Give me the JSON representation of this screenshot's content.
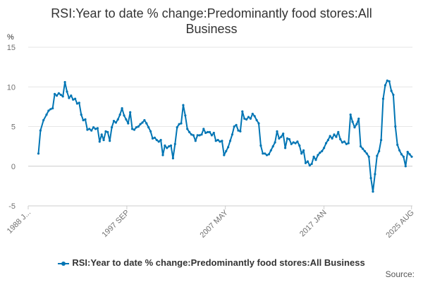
{
  "chart_data": {
    "type": "line",
    "title": "RSI:Year to date % change:Predominantly food stores:All Business",
    "ylabel": "%",
    "ylim": [
      -5,
      15
    ],
    "yticks": [
      -5,
      0,
      5,
      10,
      15
    ],
    "xlim": [
      1988.0,
      2025.67
    ],
    "xticks": [
      {
        "pos": 1988.0,
        "label": "1988 J..."
      },
      {
        "pos": 1997.67,
        "label": "1997 SEP"
      },
      {
        "pos": 2007.33,
        "label": "2007 MAY"
      },
      {
        "pos": 2017.0,
        "label": "2017 JAN"
      },
      {
        "pos": 2025.58,
        "label": "2025 AUG"
      }
    ],
    "color": "#0075b4",
    "series": [
      {
        "name": "RSI:Year to date % change:Predominantly food stores:All Business",
        "x": [
          1989.0,
          1989.2,
          1989.5,
          1989.8,
          1990.0,
          1990.2,
          1990.4,
          1990.6,
          1990.8,
          1991.0,
          1991.2,
          1991.4,
          1991.6,
          1991.8,
          1992.0,
          1992.2,
          1992.4,
          1992.6,
          1992.8,
          1993.0,
          1993.2,
          1993.4,
          1993.6,
          1993.8,
          1994.0,
          1994.2,
          1994.4,
          1994.6,
          1994.8,
          1995.0,
          1995.2,
          1995.4,
          1995.6,
          1995.8,
          1996.0,
          1996.2,
          1996.4,
          1996.6,
          1996.8,
          1997.0,
          1997.2,
          1997.4,
          1997.6,
          1997.8,
          1998.0,
          1998.2,
          1998.4,
          1998.6,
          1998.8,
          1999.0,
          1999.2,
          1999.4,
          1999.6,
          1999.8,
          2000.0,
          2000.2,
          2000.4,
          2000.6,
          2000.8,
          2001.0,
          2001.2,
          2001.4,
          2001.6,
          2001.8,
          2002.0,
          2002.2,
          2002.4,
          2002.6,
          2002.8,
          2003.0,
          2003.2,
          2003.4,
          2003.6,
          2003.8,
          2004.0,
          2004.2,
          2004.4,
          2004.6,
          2004.8,
          2005.0,
          2005.2,
          2005.4,
          2005.6,
          2005.8,
          2006.0,
          2006.2,
          2006.4,
          2006.6,
          2006.8,
          2007.0,
          2007.2,
          2007.4,
          2007.6,
          2007.8,
          2008.0,
          2008.2,
          2008.4,
          2008.6,
          2008.8,
          2009.0,
          2009.2,
          2009.4,
          2009.6,
          2009.8,
          2010.0,
          2010.2,
          2010.4,
          2010.6,
          2010.8,
          2011.0,
          2011.2,
          2011.4,
          2011.6,
          2011.8,
          2012.0,
          2012.2,
          2012.4,
          2012.6,
          2012.8,
          2013.0,
          2013.2,
          2013.4,
          2013.6,
          2013.8,
          2014.0,
          2014.2,
          2014.4,
          2014.6,
          2014.8,
          2015.0,
          2015.2,
          2015.4,
          2015.6,
          2015.8,
          2016.0,
          2016.2,
          2016.4,
          2016.6,
          2016.8,
          2017.0,
          2017.2,
          2017.4,
          2017.6,
          2017.8,
          2018.0,
          2018.2,
          2018.4,
          2018.6,
          2018.8,
          2019.0,
          2019.2,
          2019.4,
          2019.6,
          2019.8,
          2020.0,
          2020.2,
          2020.4,
          2020.6,
          2020.8,
          2021.0,
          2021.2,
          2021.4,
          2021.6,
          2021.8,
          2022.0,
          2022.2,
          2022.4,
          2022.6,
          2022.8,
          2023.0,
          2023.2,
          2023.4,
          2023.6,
          2023.8,
          2024.0,
          2024.2,
          2024.4,
          2024.6,
          2024.8,
          2025.0,
          2025.2,
          2025.4,
          2025.6
        ],
        "values": [
          1.6,
          4.5,
          5.8,
          6.5,
          7.0,
          7.2,
          7.3,
          9.1,
          8.9,
          9.2,
          9.0,
          8.8,
          10.6,
          9.4,
          8.6,
          8.9,
          8.4,
          8.5,
          7.9,
          8.0,
          6.5,
          5.8,
          5.9,
          4.6,
          4.7,
          4.5,
          4.9,
          4.7,
          4.8,
          3.1,
          4.0,
          3.3,
          4.4,
          4.3,
          3.2,
          4.9,
          5.7,
          5.5,
          5.9,
          6.5,
          7.3,
          6.4,
          5.9,
          5.4,
          6.8,
          4.7,
          4.6,
          4.9,
          5.0,
          5.3,
          5.5,
          5.8,
          5.4,
          4.9,
          4.4,
          3.5,
          3.6,
          3.3,
          3.1,
          3.3,
          1.4,
          2.6,
          2.3,
          2.5,
          2.6,
          1.0,
          2.8,
          4.9,
          5.3,
          5.4,
          7.7,
          6.4,
          4.7,
          4.3,
          4.0,
          3.9,
          3.2,
          3.9,
          3.9,
          4.0,
          4.7,
          4.2,
          4.3,
          4.3,
          3.9,
          4.2,
          3.2,
          3.3,
          3.1,
          3.2,
          1.4,
          1.9,
          2.4,
          3.2,
          4.0,
          5.0,
          5.2,
          4.5,
          4.4,
          6.9,
          6.0,
          5.9,
          6.2,
          6.0,
          6.6,
          6.3,
          5.8,
          5.4,
          2.6,
          1.6,
          1.6,
          1.4,
          1.5,
          2.0,
          2.5,
          3.0,
          4.4,
          3.5,
          3.7,
          4.1,
          2.3,
          3.5,
          3.4,
          2.8,
          3.0,
          2.9,
          3.1,
          2.6,
          1.6,
          2.0,
          0.4,
          0.6,
          0.1,
          0.3,
          1.2,
          0.8,
          1.4,
          1.7,
          1.9,
          2.3,
          2.9,
          3.3,
          3.8,
          3.5,
          4.0,
          3.7,
          4.3,
          3.4,
          3.0,
          3.1,
          2.8,
          2.9,
          6.5,
          5.6,
          4.9,
          5.3,
          6.0,
          2.5,
          2.2,
          1.9,
          1.6,
          1.2,
          -1.5,
          -3.2,
          -1.0,
          1.3,
          1.9,
          3.3,
          8.5,
          10.2,
          10.8,
          10.7,
          9.5,
          9.0,
          5.0,
          2.7,
          2.0,
          1.5,
          1.2,
          0.0,
          1.8,
          1.5,
          1.2
        ],
        "markers": true
      }
    ]
  },
  "legend": {
    "label": "RSI:Year to date % change:Predominantly food stores:All Business"
  },
  "source": {
    "label": "Source:"
  }
}
